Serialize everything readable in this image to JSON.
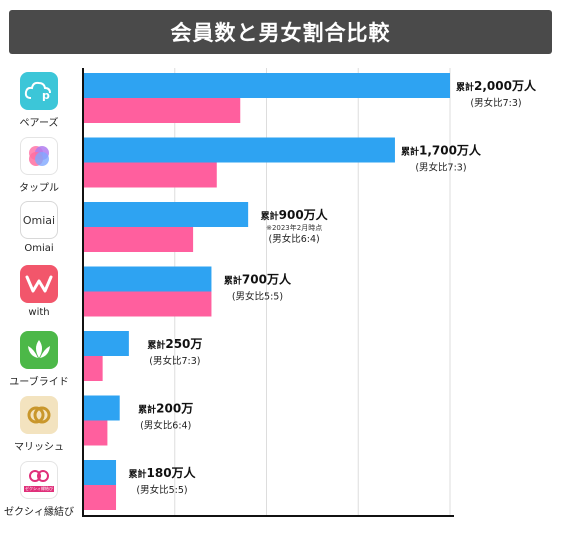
{
  "title": "会員数と男女割合比較",
  "apps": [
    {
      "name": "ペアーズ",
      "icon": "pairs-logo-icon"
    },
    {
      "name": "タップル",
      "icon": "tapple-logo-icon"
    },
    {
      "name": "Omiai",
      "icon": "omiai-logo-icon",
      "logo_text": "Omiai"
    },
    {
      "name": "with",
      "icon": "with-logo-icon"
    },
    {
      "name": "ユーブライド",
      "icon": "youbride-logo-icon"
    },
    {
      "name": "マリッシュ",
      "icon": "marrish-logo-icon"
    },
    {
      "name": "ゼクシィ縁結び",
      "icon": "zexy-logo-icon",
      "logo_text": "ゼクシィ縁結び"
    }
  ],
  "colors": {
    "male": "#2ea3f2",
    "female": "#ff5f9e",
    "title_bg": "#4a4a4a",
    "grid": "#dddddd"
  },
  "chart_data": {
    "type": "bar",
    "orientation": "horizontal",
    "title": "会員数と男女割合比較",
    "categories": [
      "ペアーズ",
      "タップル",
      "Omiai",
      "with",
      "ユーブライド",
      "マリッシュ",
      "ゼクシィ縁結び"
    ],
    "series": [
      {
        "values": [
          2000,
          1700,
          900,
          700,
          250,
          200,
          180
        ]
      },
      {
        "values": [
          857,
          729,
          600,
          700,
          107,
          133,
          180
        ]
      }
    ],
    "xlim": [
      0,
      2000
    ],
    "grid": true,
    "labels": [
      {
        "prefix": "累計",
        "value": "2,000万人",
        "ratio": "(男女比7:3)"
      },
      {
        "prefix": "累計",
        "value": "1,700万人",
        "ratio": "(男女比7:3)"
      },
      {
        "prefix": "累計",
        "value": "900万人",
        "note": "※2023年2月時点",
        "ratio": "(男女比6:4)"
      },
      {
        "prefix": "累計",
        "value": "700万人",
        "ratio": "(男女比5:5)"
      },
      {
        "prefix": "累計",
        "value": "250万",
        "ratio": "(男女比7:3)"
      },
      {
        "prefix": "累計",
        "value": "200万",
        "ratio": "(男女比6:4)"
      },
      {
        "prefix": "累計",
        "value": "180万人",
        "ratio": "(男女比5:5)"
      }
    ]
  }
}
